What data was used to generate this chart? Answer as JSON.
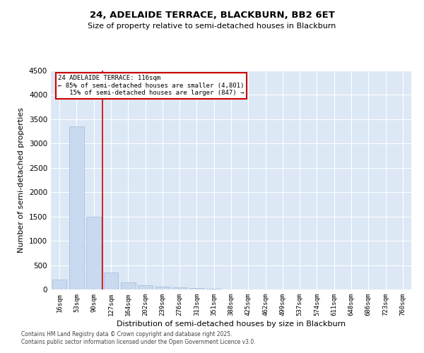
{
  "title1": "24, ADELAIDE TERRACE, BLACKBURN, BB2 6ET",
  "title2": "Size of property relative to semi-detached houses in Blackburn",
  "xlabel": "Distribution of semi-detached houses by size in Blackburn",
  "ylabel": "Number of semi-detached properties",
  "categories": [
    "16sqm",
    "53sqm",
    "90sqm",
    "127sqm",
    "164sqm",
    "202sqm",
    "239sqm",
    "276sqm",
    "313sqm",
    "351sqm",
    "388sqm",
    "425sqm",
    "462sqm",
    "499sqm",
    "537sqm",
    "574sqm",
    "611sqm",
    "648sqm",
    "686sqm",
    "723sqm",
    "760sqm"
  ],
  "values": [
    200,
    3350,
    1500,
    350,
    150,
    80,
    60,
    40,
    25,
    15,
    5,
    2,
    1,
    1,
    0,
    0,
    0,
    0,
    0,
    0,
    0
  ],
  "bar_color": "#c9d9ef",
  "bar_edge_color": "#a0bcd8",
  "red_line_x": 2.5,
  "annotation_line1": "24 ADELAIDE TERRACE: 116sqm",
  "annotation_line2": "← 85% of semi-detached houses are smaller (4,801)",
  "annotation_line3": "   15% of semi-detached houses are larger (847) →",
  "annotation_box_color": "#ffffff",
  "annotation_box_edge": "#cc0000",
  "red_line_color": "#cc0000",
  "ylim": [
    0,
    4500
  ],
  "yticks": [
    0,
    500,
    1000,
    1500,
    2000,
    2500,
    3000,
    3500,
    4000,
    4500
  ],
  "footer1": "Contains HM Land Registry data © Crown copyright and database right 2025.",
  "footer2": "Contains public sector information licensed under the Open Government Licence v3.0.",
  "plot_bg_color": "#dce8f5"
}
